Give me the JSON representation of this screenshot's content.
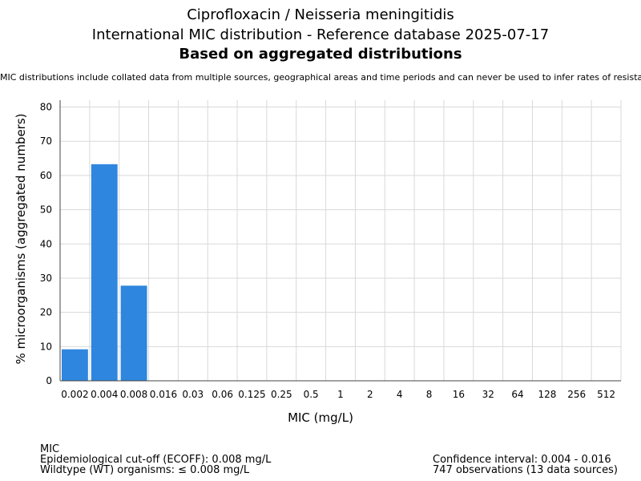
{
  "header": {
    "title_line1": "Ciprofloxacin / Neisseria meningitidis",
    "title_line2": "International MIC distribution - Reference database 2025-07-17",
    "title_line3": "Based on aggregated distributions",
    "note": "MIC distributions include collated data from multiple sources, geographical areas and time periods and can never be used to infer rates of resistance"
  },
  "chart_data": {
    "type": "bar",
    "categories": [
      "0.002",
      "0.004",
      "0.008",
      "0.016",
      "0.03",
      "0.06",
      "0.125",
      "0.25",
      "0.5",
      "1",
      "2",
      "4",
      "8",
      "16",
      "32",
      "64",
      "128",
      "256",
      "512"
    ],
    "values": [
      9.2,
      63.3,
      27.8,
      0,
      0,
      0,
      0,
      0,
      0,
      0,
      0,
      0,
      0,
      0,
      0,
      0,
      0,
      0,
      0
    ],
    "xlabel": "MIC (mg/L)",
    "ylabel": "% microorganisms (aggregated numbers)",
    "ylim": [
      0,
      82
    ],
    "yticks": [
      0,
      10,
      20,
      30,
      40,
      50,
      60,
      70,
      80
    ],
    "grid": true,
    "bar_color": "#2e86de",
    "grid_color": "#d9d9d9"
  },
  "footer": {
    "left": {
      "line1": "MIC",
      "line2": "Epidemiological cut-off (ECOFF): 0.008 mg/L",
      "line3": "Wildtype (WT) organisms: ≤ 0.008 mg/L"
    },
    "right": {
      "line1": "Confidence interval: 0.004 - 0.016",
      "line2": "747 observations (13 data sources)"
    }
  }
}
